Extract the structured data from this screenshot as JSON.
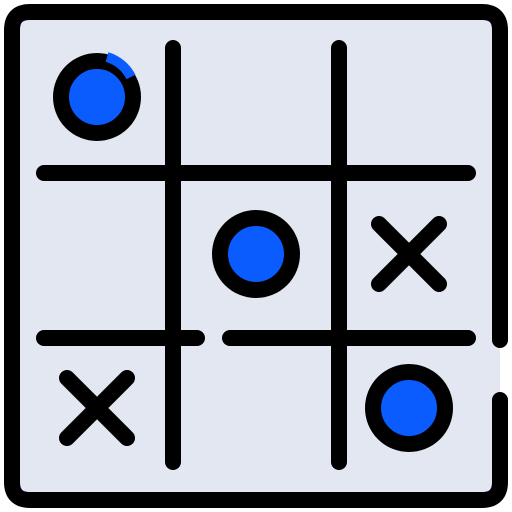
{
  "icon": {
    "name": "tic-tac-toe-icon",
    "colors": {
      "board_fill": "#e2e7f2",
      "outline": "#000000",
      "o_fill": "#0a5cff"
    },
    "cells": [
      [
        "O",
        "",
        ""
      ],
      [
        "",
        "O",
        "X"
      ],
      [
        "X",
        "",
        "O"
      ]
    ]
  }
}
